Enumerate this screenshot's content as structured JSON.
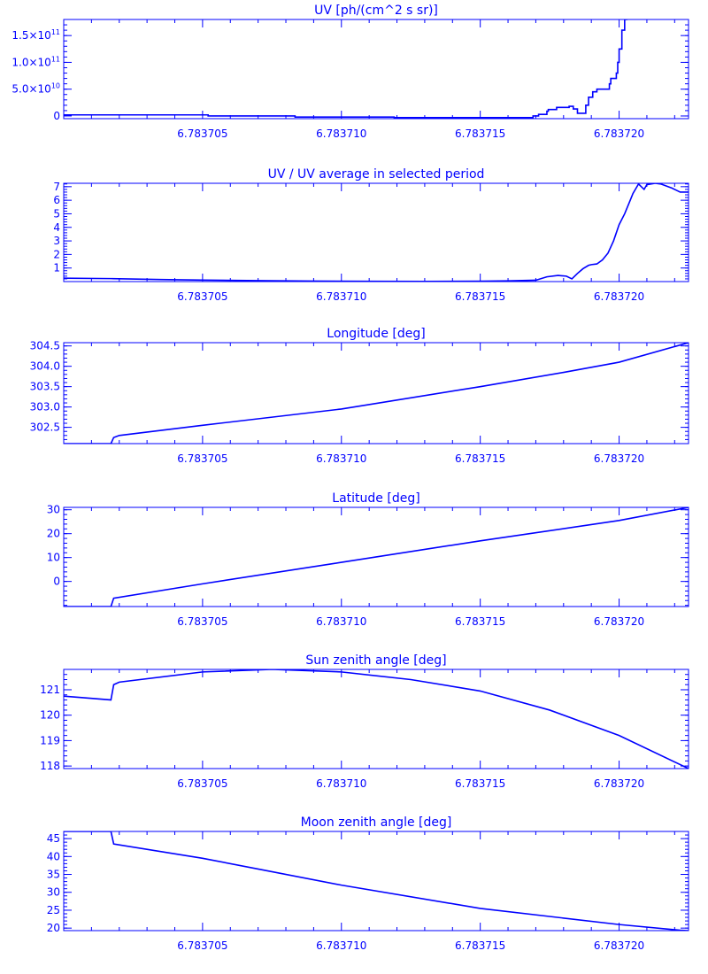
{
  "chart_data": [
    {
      "type": "line",
      "title": "UV [ph/(cm^2 s sr)]",
      "xlim": [
        6.7837,
        6.7837225
      ],
      "ylim": [
        -5000000000.0,
        180000000000.0
      ],
      "xticks": [
        "6.783705",
        "6.783710",
        "6.783715",
        "6.783720"
      ],
      "yticks": [
        {
          "v": 0,
          "label": "0"
        },
        {
          "v": 50000000000.0,
          "label": "5.0×10",
          "exp": "10"
        },
        {
          "v": 100000000000.0,
          "label": "1.0×10",
          "exp": "11"
        },
        {
          "v": 150000000000.0,
          "label": "1.5×10",
          "exp": "11"
        }
      ],
      "series": [
        {
          "step": true,
          "x": [
            6.7837,
            6.78370166,
            6.7837052,
            6.78370833,
            6.7837119,
            6.7837134,
            6.783716,
            6.7837169,
            6.7837171,
            6.7837174,
            6.78371745,
            6.78371775,
            6.7837182,
            6.78371835,
            6.7837185,
            6.7837188,
            6.7837189,
            6.78371905,
            6.7837192,
            6.7837195,
            6.78371965,
            6.7837197,
            6.7837199,
            6.78371995,
            6.78372,
            6.7837201,
            6.7837202,
            6.7837203
          ],
          "y": [
            2000000000.0,
            2000000000.0,
            0,
            -2000000000.0,
            -3000000000.0,
            -3000000000.0,
            -3000000000.0,
            0,
            3000000000.0,
            9000000000.0,
            12000000000.0,
            16000000000.0,
            18000000000.0,
            13000000000.0,
            5000000000.0,
            20000000000.0,
            35000000000.0,
            45000000000.0,
            50000000000.0,
            50000000000.0,
            60000000000.0,
            70000000000.0,
            80000000000.0,
            100000000000.0,
            125000000000.0,
            160000000000.0,
            180000000000.0,
            180000000000.0
          ]
        }
      ]
    },
    {
      "type": "line",
      "title": "UV / UV average in selected period",
      "xlim": [
        6.7837,
        6.7837225
      ],
      "ylim": [
        0,
        7.25
      ],
      "xticks": [
        "6.783705",
        "6.783710",
        "6.783715",
        "6.783720"
      ],
      "yticks": [
        {
          "v": 1,
          "label": "1"
        },
        {
          "v": 2,
          "label": "2"
        },
        {
          "v": 3,
          "label": "3"
        },
        {
          "v": 4,
          "label": "4"
        },
        {
          "v": 5,
          "label": "5"
        },
        {
          "v": 6,
          "label": "6"
        },
        {
          "v": 7,
          "label": "7"
        }
      ],
      "series": [
        {
          "x": [
            6.7837,
            6.7837017,
            6.7837035,
            6.783705,
            6.783707,
            6.783709,
            6.783711,
            6.783713,
            6.783715,
            6.783716,
            6.783717,
            6.7837174,
            6.7837178,
            6.7837181,
            6.7837183,
            6.7837185,
            6.7837187,
            6.7837189,
            6.783719,
            6.7837192,
            6.7837194,
            6.7837196,
            6.7837198,
            6.78372,
            6.7837202,
            6.7837204,
            6.7837205,
            6.7837207,
            6.7837209,
            6.783721,
            6.7837213,
            6.7837215,
            6.7837219,
            6.7837221,
            6.7837222,
            6.7837225
          ],
          "y": [
            0.25,
            0.22,
            0.15,
            0.11,
            0.07,
            0.04,
            0.02,
            0.01,
            0.03,
            0.05,
            0.1,
            0.35,
            0.45,
            0.4,
            0.2,
            0.6,
            0.95,
            1.2,
            1.25,
            1.3,
            1.6,
            2.1,
            3,
            4.2,
            5,
            6,
            6.5,
            7.2,
            6.8,
            7.15,
            7.25,
            7.2,
            6.9,
            6.7,
            6.6,
            6.6
          ]
        }
      ]
    },
    {
      "type": "line",
      "title": "Longitude [deg]",
      "xlim": [
        6.7837,
        6.7837225
      ],
      "ylim": [
        302.1,
        304.58
      ],
      "xticks": [
        "6.783705",
        "6.783710",
        "6.783715",
        "6.783720"
      ],
      "yticks": [
        {
          "v": 302.5,
          "label": "302.5"
        },
        {
          "v": 303.0,
          "label": "303.0"
        },
        {
          "v": 303.5,
          "label": "303.5"
        },
        {
          "v": 304.0,
          "label": "304.0"
        },
        {
          "v": 304.5,
          "label": "304.5"
        }
      ],
      "series": [
        {
          "x": [
            6.7837,
            6.7837017,
            6.7837018,
            6.783702,
            6.783705,
            6.78371,
            6.783715,
            6.783718,
            6.78372,
            6.7837225
          ],
          "y": [
            302.1,
            302.1,
            302.25,
            302.3,
            302.55,
            302.95,
            303.5,
            303.85,
            304.1,
            304.58
          ]
        }
      ]
    },
    {
      "type": "line",
      "title": "Latitude [deg]",
      "xlim": [
        6.7837,
        6.7837225
      ],
      "ylim": [
        -10.5,
        31
      ],
      "xticks": [
        "6.783705",
        "6.783710",
        "6.783715",
        "6.783720"
      ],
      "yticks": [
        {
          "v": 0,
          "label": "0"
        },
        {
          "v": 10,
          "label": "10"
        },
        {
          "v": 20,
          "label": "20"
        },
        {
          "v": 30,
          "label": "30"
        }
      ],
      "series": [
        {
          "x": [
            6.7837,
            6.7837017,
            6.7837018,
            6.783705,
            6.78371,
            6.783715,
            6.78372,
            6.7837225
          ],
          "y": [
            -10.5,
            -10.5,
            -7,
            -1,
            8,
            17,
            25.5,
            31
          ]
        }
      ]
    },
    {
      "type": "line",
      "title": "Sun zenith angle [deg]",
      "xlim": [
        6.7837,
        6.7837225
      ],
      "ylim": [
        117.9,
        121.8
      ],
      "xticks": [
        "6.783705",
        "6.783710",
        "6.783715",
        "6.783720"
      ],
      "yticks": [
        {
          "v": 118,
          "label": "118"
        },
        {
          "v": 119,
          "label": "119"
        },
        {
          "v": 120,
          "label": "120"
        },
        {
          "v": 121,
          "label": "121"
        }
      ],
      "series": [
        {
          "x": [
            6.7837,
            6.7837017,
            6.7837018,
            6.783702,
            6.783705,
            6.7837075,
            6.78371,
            6.7837125,
            6.783715,
            6.7837175,
            6.78372,
            6.7837225
          ],
          "y": [
            120.75,
            120.6,
            121.2,
            121.3,
            121.7,
            121.8,
            121.7,
            121.4,
            120.95,
            120.2,
            119.2,
            117.9
          ]
        }
      ]
    },
    {
      "type": "line",
      "title": "Moon zenith angle [deg]",
      "xlim": [
        6.7837,
        6.7837225
      ],
      "ylim": [
        19.3,
        47
      ],
      "xticks": [
        "6.783705",
        "6.783710",
        "6.783715",
        "6.783720"
      ],
      "yticks": [
        {
          "v": 20,
          "label": "20"
        },
        {
          "v": 25,
          "label": "25"
        },
        {
          "v": 30,
          "label": "30"
        },
        {
          "v": 35,
          "label": "35"
        },
        {
          "v": 40,
          "label": "40"
        },
        {
          "v": 45,
          "label": "45"
        }
      ],
      "series": [
        {
          "x": [
            6.7837,
            6.7837017,
            6.7837018,
            6.783705,
            6.783707,
            6.78371,
            6.783715,
            6.78372,
            6.7837222,
            6.7837225
          ],
          "y": [
            47,
            47,
            43.5,
            39.5,
            36.5,
            32,
            25.5,
            21,
            19.4,
            19.3
          ]
        }
      ]
    }
  ],
  "colors": {
    "axis": "#0000ff",
    "line": "#0000ff",
    "background": "#ffffff"
  }
}
